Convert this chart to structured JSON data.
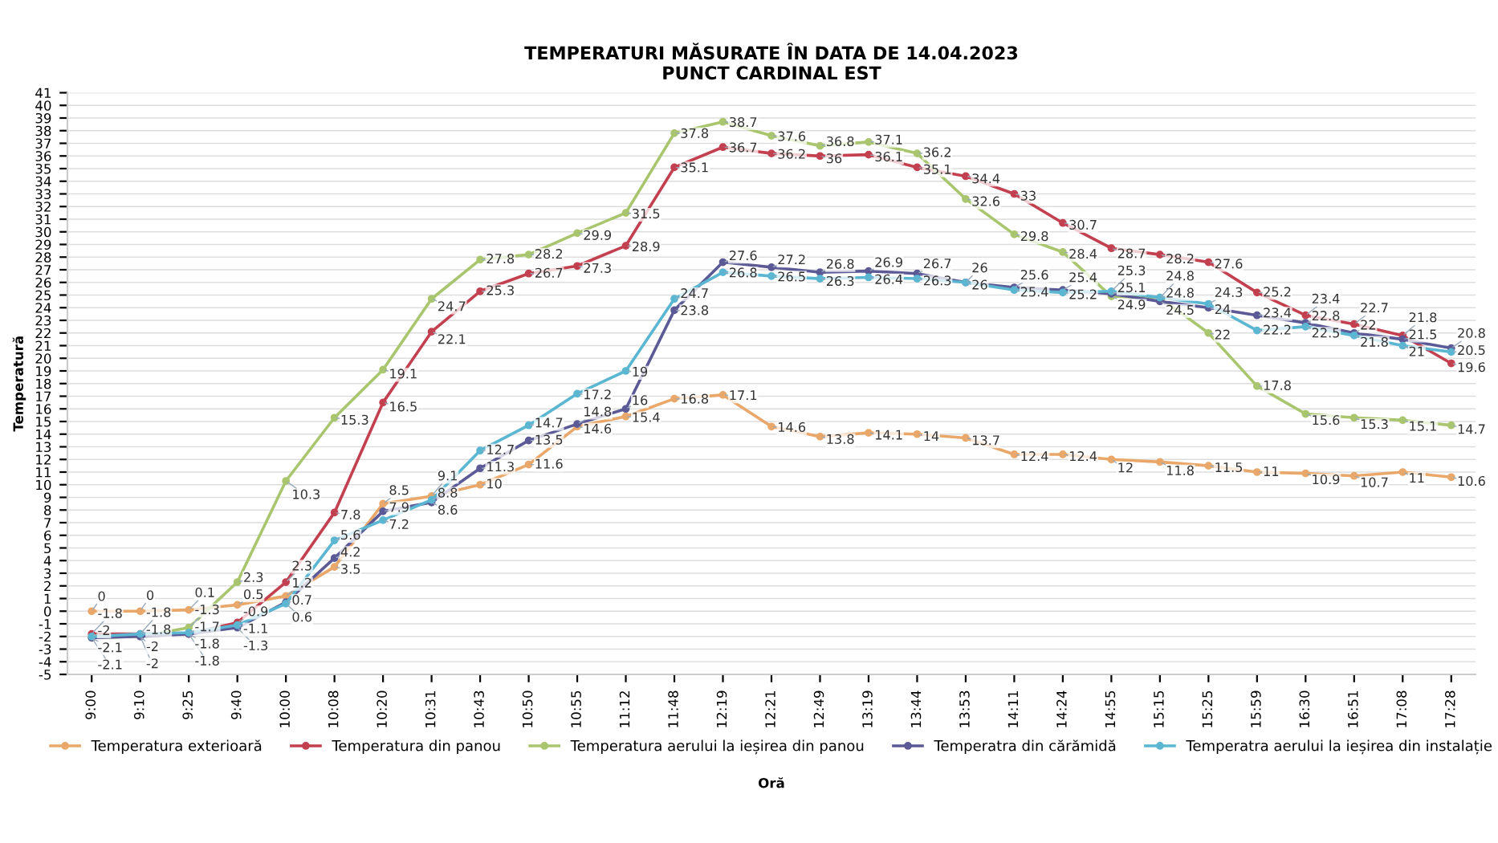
{
  "chart_data": {
    "type": "line",
    "title": "TEMPERATURI MĂSURATE ÎN DATA DE 14.04.2023\nPUNCT CARDINAL EST",
    "xlabel": "Oră",
    "ylabel": "Temperatură",
    "categories": [
      "9:00",
      "9:10",
      "9:25",
      "9:40",
      "10:00",
      "10:08",
      "10:20",
      "10:31",
      "10:43",
      "10:50",
      "10:55",
      "11:12",
      "11:48",
      "12:19",
      "12:21",
      "12:49",
      "13:19",
      "13:44",
      "13:53",
      "14:11",
      "14:24",
      "14:55",
      "15:15",
      "15:25",
      "15:59",
      "16:30",
      "16:51",
      "17:08",
      "17:28"
    ],
    "series": [
      {
        "name": "Temperatura exterioară",
        "color": "#e9a86a",
        "values": [
          0,
          0,
          0.1,
          0.5,
          1.2,
          3.5,
          8.5,
          9.1,
          10,
          11.6,
          14.6,
          15.4,
          16.8,
          17.1,
          14.6,
          13.8,
          14.1,
          14,
          13.7,
          12.4,
          12.4,
          12,
          11.8,
          11.5,
          11,
          10.9,
          10.7,
          11,
          10.6
        ]
      },
      {
        "name": "Temperatura din panou",
        "color": "#c2404f",
        "values": [
          -1.8,
          -1.8,
          -1.8,
          -0.9,
          2.3,
          7.8,
          16.5,
          22.1,
          25.3,
          26.7,
          27.3,
          28.9,
          35.1,
          36.7,
          36.2,
          36,
          36.1,
          35.1,
          34.4,
          33,
          30.7,
          28.7,
          28.2,
          27.6,
          25.2,
          23.4,
          22.7,
          21.8,
          19.6
        ]
      },
      {
        "name": "Temperatura aerului la ieșirea din panou",
        "color": "#a9c66e",
        "values": [
          -2.1,
          -2,
          -1.3,
          2.3,
          10.3,
          15.3,
          19.1,
          24.7,
          27.8,
          28.2,
          29.9,
          31.5,
          37.8,
          38.7,
          37.6,
          36.8,
          37.1,
          36.2,
          32.6,
          29.8,
          28.4,
          24.9,
          24.8,
          22,
          17.8,
          15.6,
          15.3,
          15.1,
          14.7
        ]
      },
      {
        "name": "Temperatra din cărămidă",
        "color": "#5c5a96",
        "values": [
          -2.1,
          -2,
          -1.8,
          -1.3,
          0.7,
          4.2,
          7.9,
          8.6,
          11.3,
          13.5,
          14.8,
          16,
          23.8,
          27.6,
          27.2,
          26.8,
          26.9,
          26.7,
          26,
          25.6,
          25.4,
          25.1,
          24.5,
          24,
          23.4,
          22.8,
          22,
          21.5,
          20.8
        ]
      },
      {
        "name": "Temperatra aerului la ieșirea din instalație",
        "color": "#5bb6d2",
        "values": [
          -2,
          -1.8,
          -1.7,
          -1.1,
          0.6,
          5.6,
          7.2,
          8.8,
          12.7,
          14.7,
          17.2,
          19,
          24.7,
          26.8,
          26.5,
          26.3,
          26.4,
          26.3,
          26,
          25.4,
          25.2,
          25.3,
          24.8,
          24.3,
          22.2,
          22.5,
          21.8,
          21,
          20.5
        ]
      }
    ],
    "ylim": [
      -5,
      41
    ],
    "yticks": [
      -5,
      -4,
      -3,
      -2,
      -1,
      0,
      1,
      2,
      3,
      4,
      5,
      6,
      7,
      8,
      9,
      10,
      11,
      12,
      13,
      14,
      15,
      16,
      17,
      18,
      19,
      20,
      21,
      22,
      23,
      24,
      25,
      26,
      27,
      28,
      29,
      30,
      31,
      32,
      33,
      34,
      35,
      36,
      37,
      38,
      39,
      40,
      41
    ],
    "grid": "y",
    "legend": "bottom",
    "marker": "circle",
    "line_style": "solid",
    "data_labels": true
  }
}
